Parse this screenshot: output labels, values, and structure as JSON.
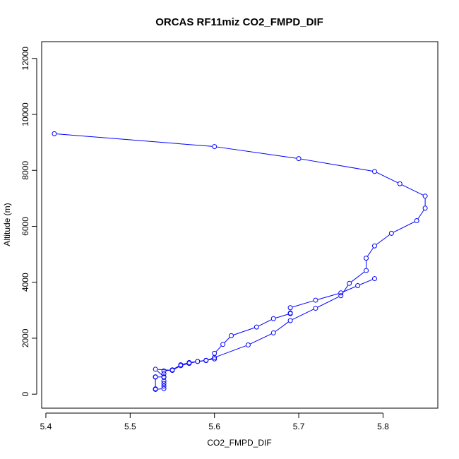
{
  "chart_data": {
    "type": "line",
    "title": "ORCAS RF11miz CO2_FMPD_DIF",
    "xlabel": "CO2_FMPD_DIF",
    "ylabel": "Altitude (m)",
    "xlim": [
      5.395,
      5.865
    ],
    "ylim": [
      -500,
      12600
    ],
    "xticks": [
      5.4,
      5.5,
      5.6,
      5.7,
      5.8
    ],
    "xtick_labels": [
      "5.4",
      "5.5",
      "5.6",
      "5.7",
      "5.8"
    ],
    "yticks": [
      0,
      2000,
      4000,
      6000,
      8000,
      10000,
      12000
    ],
    "ytick_labels": [
      "0",
      "2000",
      "4000",
      "6000",
      "8000",
      "10000",
      "12000"
    ],
    "grid": false,
    "legend": "none",
    "color": "#0000ff",
    "series": [
      {
        "points": [
          [
            5.41,
            9310
          ],
          [
            5.6,
            8850
          ],
          [
            5.7,
            8420
          ],
          [
            5.79,
            7960
          ],
          [
            5.82,
            7520
          ],
          [
            5.85,
            7080
          ],
          [
            5.85,
            6650
          ],
          [
            5.84,
            6200
          ],
          [
            5.81,
            5750
          ],
          [
            5.79,
            5300
          ],
          [
            5.78,
            4860
          ],
          [
            5.78,
            4420
          ],
          [
            5.76,
            3960
          ],
          [
            5.75,
            3520
          ],
          [
            5.72,
            3070
          ],
          [
            5.69,
            2630
          ],
          [
            5.67,
            2190
          ],
          [
            5.64,
            1760
          ],
          [
            5.6,
            1310
          ],
          [
            5.59,
            1200
          ],
          [
            5.58,
            1170
          ],
          [
            5.57,
            1130
          ],
          [
            5.56,
            1050
          ],
          [
            5.55,
            870
          ],
          [
            5.54,
            830
          ],
          [
            5.54,
            730
          ],
          [
            5.54,
            600
          ],
          [
            5.54,
            470
          ],
          [
            5.54,
            380
          ],
          [
            5.54,
            290
          ],
          [
            5.54,
            200
          ],
          [
            5.53,
            170
          ],
          [
            5.53,
            190
          ],
          [
            5.53,
            620
          ],
          [
            5.53,
            610
          ],
          [
            5.54,
            620
          ],
          [
            5.53,
            890
          ],
          [
            5.55,
            850
          ],
          [
            5.56,
            1020
          ],
          [
            5.57,
            1100
          ],
          [
            5.58,
            1170
          ],
          [
            5.59,
            1210
          ],
          [
            5.6,
            1260
          ],
          [
            5.6,
            1460
          ],
          [
            5.61,
            1780
          ],
          [
            5.62,
            2090
          ],
          [
            5.65,
            2400
          ],
          [
            5.67,
            2700
          ],
          [
            5.69,
            2880
          ],
          [
            5.69,
            2900
          ],
          [
            5.69,
            3090
          ],
          [
            5.72,
            3360
          ],
          [
            5.75,
            3620
          ],
          [
            5.77,
            3880
          ],
          [
            5.79,
            4130
          ]
        ]
      }
    ]
  }
}
